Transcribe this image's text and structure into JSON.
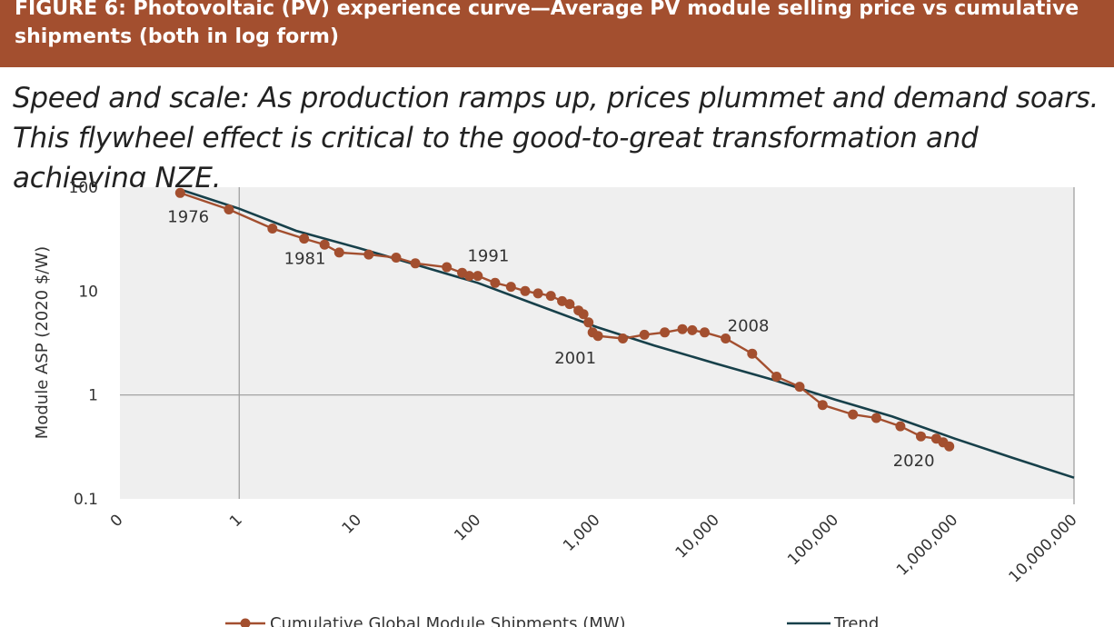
{
  "header": {
    "title": "FIGURE 6: Photovoltaic (PV) experience curve—Average PV module selling price vs cumulative shipments (both in log form)",
    "background_color": "#a34f2f"
  },
  "subtitle": "Speed and scale: As production ramps up, prices plummet and demand soars. This flywheel effect is critical to the good-to-great transformation and achieving NZE.",
  "chart_data": {
    "type": "line",
    "title": "",
    "xlabel": "",
    "ylabel": "Module ASP (2020 $/W)",
    "x_scale": "log",
    "y_scale": "log",
    "x_ticks": [
      "0",
      "1",
      "10",
      "100",
      "1,000",
      "10,000",
      "100,000",
      "1,000,000",
      "10,000,000"
    ],
    "y_ticks": [
      "100",
      "10",
      "1",
      "0.1"
    ],
    "xlim": [
      0.1,
      10000000
    ],
    "ylim": [
      0.1,
      100
    ],
    "grid": "major lines at 1 on x-axis and 1 on y-axis",
    "legend_position": "bottom",
    "series": [
      {
        "name": "Cumulative Global Module Shipments (MW)",
        "color": "#a34f2f",
        "marker": "circle",
        "x": [
          0.32,
          0.82,
          1.9,
          3.5,
          5.2,
          6.9,
          12.2,
          20.7,
          30,
          55,
          74,
          85,
          100,
          140,
          190,
          250,
          320,
          410,
          510,
          590,
          700,
          770,
          850,
          920,
          1020,
          1650,
          2500,
          3700,
          5200,
          6300,
          8000,
          12000,
          20000,
          32000,
          50000,
          78000,
          140000,
          220000,
          350000,
          520000,
          700000,
          800000,
          900000
        ],
        "y": [
          88,
          61,
          40,
          32,
          28,
          23.5,
          22.5,
          21,
          18.5,
          17,
          15,
          14,
          14,
          12,
          11,
          10,
          9.5,
          9,
          8,
          7.5,
          6.5,
          6,
          5,
          4,
          3.7,
          3.5,
          3.8,
          4.0,
          4.3,
          4.2,
          4.0,
          3.5,
          2.5,
          1.5,
          1.2,
          0.8,
          0.65,
          0.6,
          0.5,
          0.4,
          0.38,
          0.35,
          0.32
        ]
      },
      {
        "name": "Trend",
        "color": "#17404a",
        "x": [
          0.32,
          1,
          3,
          10,
          30,
          100,
          300,
          1000,
          3000,
          10000,
          30000,
          100000,
          300000,
          1000000,
          3000000,
          10000000
        ],
        "y": [
          95,
          62,
          38,
          26,
          18,
          12,
          7.5,
          4.5,
          3.0,
          2.0,
          1.4,
          0.9,
          0.62,
          0.38,
          0.25,
          0.16
        ]
      }
    ],
    "annotations": [
      {
        "text": "1976",
        "x": 0.32,
        "y": 88
      },
      {
        "text": "1981",
        "x": 3.5,
        "y": 32
      },
      {
        "text": "1991",
        "x": 85,
        "y": 14
      },
      {
        "text": "2001",
        "x": 920,
        "y": 4
      },
      {
        "text": "2008",
        "x": 12000,
        "y": 3.5
      },
      {
        "text": "2020",
        "x": 900000,
        "y": 0.32
      }
    ]
  }
}
